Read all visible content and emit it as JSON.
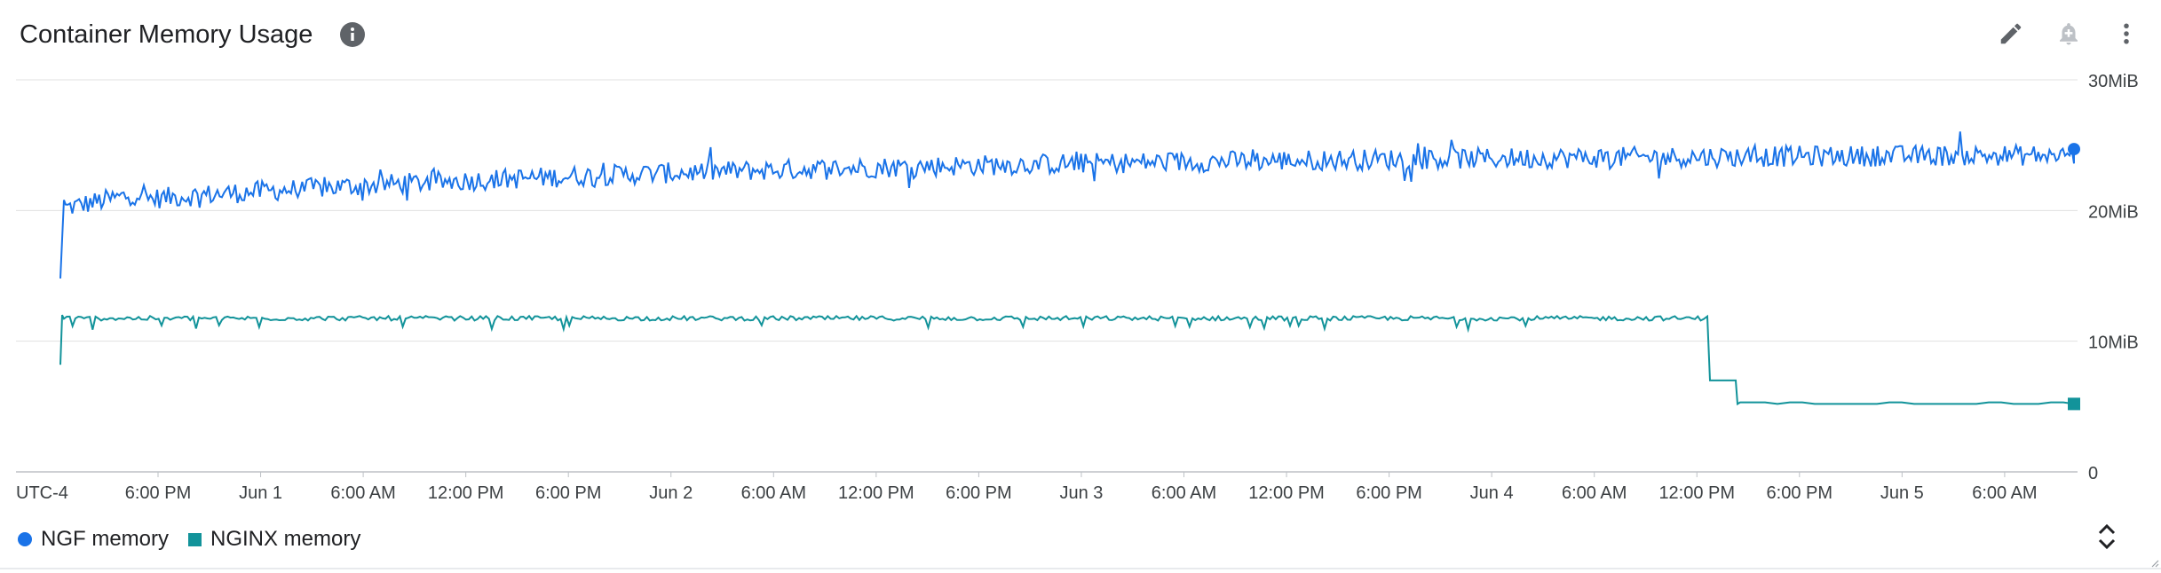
{
  "header": {
    "title": "Container Memory Usage"
  },
  "icons": {
    "info": "info-icon",
    "edit": "pencil-icon",
    "alert": "add-alert-bell-icon",
    "more": "more-vert-icon",
    "expand": "expand-collapse-icon"
  },
  "colors": {
    "ngf": "#1a73e8",
    "nginx": "#12939a",
    "grid": "#e0e0e0",
    "text": "#202124",
    "axis_text": "#3c4043"
  },
  "chart_data": {
    "type": "line",
    "title": "Container Memory Usage",
    "x_axis": {
      "timezone_label": "UTC-4",
      "ticks": [
        "6:00 PM",
        "Jun 1",
        "6:00 AM",
        "12:00 PM",
        "6:00 PM",
        "Jun 2",
        "6:00 AM",
        "12:00 PM",
        "6:00 PM",
        "Jun 3",
        "6:00 AM",
        "12:00 PM",
        "6:00 PM",
        "Jun 4",
        "6:00 AM",
        "12:00 PM",
        "6:00 PM",
        "Jun 5",
        "6:00 AM"
      ],
      "range": [
        "May 31 ~1:45 PM",
        "Jun 5 ~10:00 AM"
      ]
    },
    "y_axis": {
      "ticks": [
        "0",
        "10MiB",
        "20MiB",
        "30MiB"
      ],
      "ylim": [
        0,
        30
      ],
      "unit": "MiB",
      "position": "right"
    },
    "grid": true,
    "legend_position": "bottom-left",
    "series": [
      {
        "name": "NGF memory",
        "color": "#1a73e8",
        "marker": "circle",
        "description_points": {
          "start_value": 14.8,
          "jump_to": 20.8,
          "trend": "rises gradually from ~21 to ~25 with high-frequency noise of about +/-1",
          "end_value": 24.7
        }
      },
      {
        "name": "NGINX memory",
        "color": "#12939a",
        "marker": "square",
        "description_points": {
          "start_value": 8.2,
          "plateau": 11.8,
          "drop_at": "Jun 4 ~12:45 PM",
          "after_drop_step": 7.0,
          "later_value": 5.2,
          "end_value": 5.2
        }
      }
    ]
  },
  "legend": {
    "items": [
      {
        "label": "NGF memory"
      },
      {
        "label": "NGINX memory"
      }
    ]
  }
}
